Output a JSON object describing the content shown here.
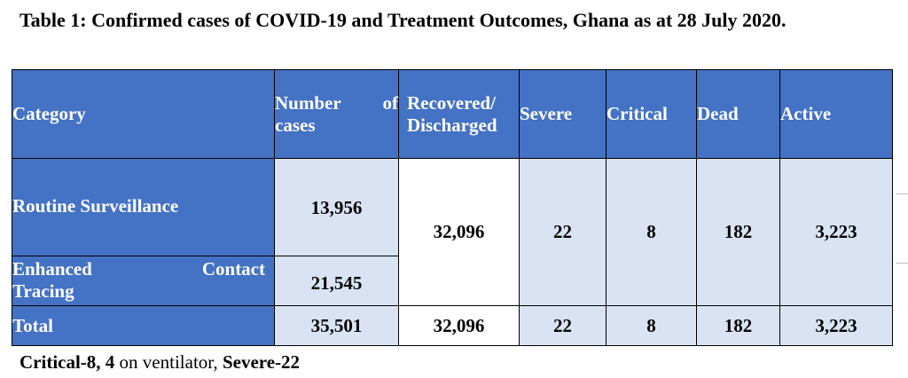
{
  "title": "Table 1: Confirmed cases of COVID-19 and Treatment Outcomes, Ghana as at 28 July 2020.",
  "headers": {
    "category": "Category",
    "cases_line1": "Number of",
    "cases_line2": "cases",
    "recovered_line1": "Recovered/",
    "recovered_line2": "Discharged",
    "severe": "Severe",
    "critical": "Critical",
    "dead": "Dead",
    "active": "Active"
  },
  "rows": {
    "routine": {
      "label": "Routine Surveillance",
      "cases": "13,956"
    },
    "enhanced": {
      "label_line1_left": "Enhanced",
      "label_line1_right": "Contact",
      "label_line2": "Tracing",
      "cases": "21,545"
    },
    "merged": {
      "recovered": "32,096",
      "severe": "22",
      "critical": "8",
      "dead": "182",
      "active": "3,223"
    },
    "total": {
      "label": "Total",
      "cases": "35,501",
      "recovered": "32,096",
      "severe": "22",
      "critical": "8",
      "dead": "182",
      "active": "3,223"
    }
  },
  "footnote": {
    "critical": "Critical-8,",
    "ventilator_count": "4",
    "ventilator_text": " on ventilator,",
    "severe": "Severe-22"
  }
}
